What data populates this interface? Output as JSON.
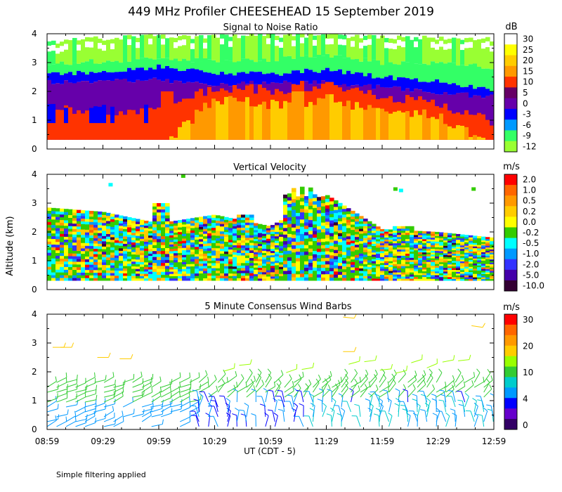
{
  "title": "449 MHz Profiler CHEESEHEAD 15 September 2019",
  "ylabel": "Altitude (km)",
  "xlabel": "UT  (CDT - 5)",
  "footnote": "Simple filtering applied",
  "x_ticks": [
    "08:59",
    "09:29",
    "09:59",
    "10:29",
    "10:59",
    "11:29",
    "11:59",
    "12:29",
    "12:59"
  ],
  "chart_data": [
    {
      "type": "heatmap",
      "title": "Signal to Noise Ratio",
      "ylim": [
        0,
        4
      ],
      "y_ticks": [
        "0",
        "1",
        "2",
        "3",
        "4"
      ],
      "colorbar": {
        "unit": "dB",
        "labels": [
          "30",
          "25",
          "20",
          "15",
          "10",
          "5",
          "0",
          "-3",
          "-6",
          "-9",
          "-12"
        ],
        "colors": [
          "#ffffff",
          "#ffff00",
          "#ffcc00",
          "#ff9900",
          "#ff3300",
          "#660066",
          "#6600aa",
          "#0000ff",
          "#0099ff",
          "#33ff66",
          "#99ff33"
        ]
      },
      "hours": [
        0,
        0.5,
        1.0,
        1.5,
        2.0,
        2.5,
        3.0,
        3.5,
        4.0
      ],
      "bands_km": {
        "top_of_data": [
          3.7,
          3.85,
          3.9,
          3.9,
          3.95,
          3.95,
          3.9,
          3.85,
          3.8
        ],
        "upper_noise": [
          2.95,
          3.05,
          3.1,
          3.05,
          3.1,
          3.25,
          3.0,
          2.95,
          2.85
        ],
        "blue_layer": [
          2.6,
          2.7,
          2.85,
          2.65,
          2.6,
          2.75,
          2.5,
          2.35,
          2.05
        ],
        "purple_layer": [
          2.3,
          2.35,
          2.4,
          2.25,
          2.3,
          2.3,
          2.15,
          1.95,
          1.8
        ],
        "red_layer": [
          1.5,
          1.2,
          1.3,
          2.15,
          2.05,
          2.1,
          1.85,
          1.6,
          0.9
        ],
        "orange_layer": [
          0.0,
          0.0,
          0.0,
          1.75,
          1.55,
          1.6,
          1.4,
          1.2,
          0.0
        ]
      }
    },
    {
      "type": "heatmap",
      "title": "Vertical Velocity",
      "ylim": [
        0,
        4
      ],
      "y_ticks": [
        "0",
        "1",
        "2",
        "3",
        "4"
      ],
      "colorbar": {
        "unit": "m/s",
        "labels": [
          "2.0",
          "1.0",
          "0.5",
          "0.2",
          "0.0",
          "-0.2",
          "-0.5",
          "-1.0",
          "-2.0",
          "-5.0",
          "-10.0"
        ],
        "colors": [
          "#ff0000",
          "#ff6600",
          "#ff9900",
          "#ffcc00",
          "#ffff00",
          "#33cc00",
          "#00ffff",
          "#0099ff",
          "#3333ff",
          "#4400aa",
          "#330033"
        ]
      },
      "hours": [
        0,
        0.5,
        1.0,
        1.5,
        2.0,
        2.5,
        3.0,
        3.5,
        4.0
      ],
      "data_top_km": [
        2.85,
        2.7,
        2.3,
        2.6,
        2.2,
        3.3,
        2.1,
        2.0,
        1.8
      ]
    },
    {
      "type": "scatter",
      "title": "5 Minute Consensus Wind Barbs",
      "ylim": [
        0,
        4
      ],
      "y_ticks": [
        "0",
        "1",
        "2",
        "3",
        "4"
      ],
      "colorbar": {
        "unit": "m/s",
        "labels": [
          "30",
          "20",
          "10",
          "4",
          "0"
        ],
        "colors": [
          "#ff0000",
          "#ff6600",
          "#ff9900",
          "#ffcc00",
          "#99ff00",
          "#33cc33",
          "#00cccc",
          "#0099ff",
          "#0000ff",
          "#6600cc",
          "#330066"
        ]
      }
    }
  ],
  "colors": {
    "no_data": "#ffffff",
    "axis": "#000000"
  }
}
